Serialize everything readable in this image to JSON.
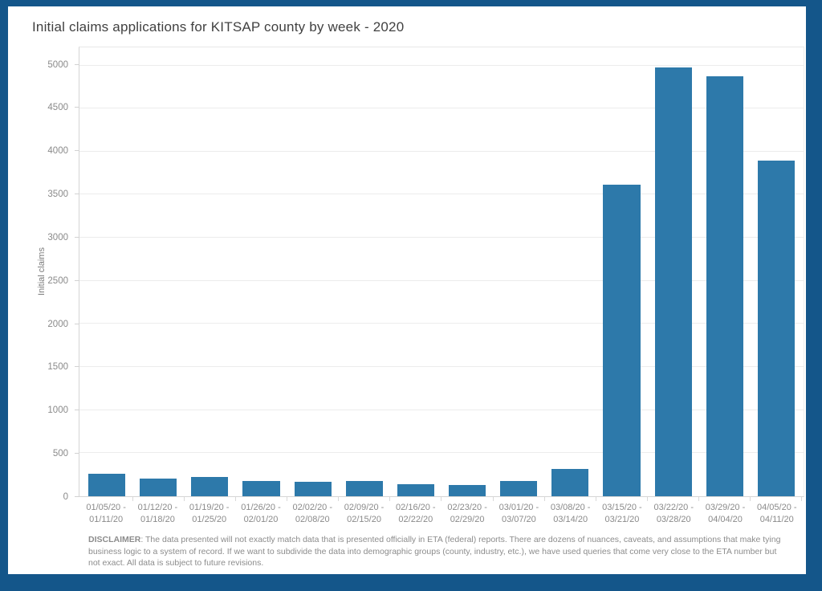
{
  "page": {
    "frame_color": "#14568a",
    "background_color": "#ffffff"
  },
  "chart_data": {
    "type": "bar",
    "title": "Initial claims applications for KITSAP county by week - 2020",
    "xlabel": "",
    "ylabel": "Initial claims",
    "ylim": [
      0,
      5210
    ],
    "yticks": [
      0,
      500,
      1000,
      1500,
      2000,
      2500,
      3000,
      3500,
      4000,
      4500,
      5000
    ],
    "grid": true,
    "legend_position": "none",
    "bar_color": "#2d79aa",
    "categories": [
      {
        "start": "01/05/20",
        "end": "01/11/20"
      },
      {
        "start": "01/12/20",
        "end": "01/18/20"
      },
      {
        "start": "01/19/20",
        "end": "01/25/20"
      },
      {
        "start": "01/26/20",
        "end": "02/01/20"
      },
      {
        "start": "02/02/20",
        "end": "02/08/20"
      },
      {
        "start": "02/09/20",
        "end": "02/15/20"
      },
      {
        "start": "02/16/20",
        "end": "02/22/20"
      },
      {
        "start": "02/23/20",
        "end": "02/29/20"
      },
      {
        "start": "03/01/20",
        "end": "03/07/20"
      },
      {
        "start": "03/08/20",
        "end": "03/14/20"
      },
      {
        "start": "03/15/20",
        "end": "03/21/20"
      },
      {
        "start": "03/22/20",
        "end": "03/28/20"
      },
      {
        "start": "03/29/20",
        "end": "04/04/20"
      },
      {
        "start": "04/05/20",
        "end": "04/11/20"
      }
    ],
    "values": [
      260,
      205,
      220,
      175,
      165,
      180,
      140,
      130,
      180,
      320,
      3620,
      4980,
      4870,
      3900
    ]
  },
  "footer": {
    "disclaimer_label": "DISCLAIMER",
    "disclaimer_text": ": The data presented will not exactly match data that is presented officially in ETA (federal) reports. There are dozens of nuances, caveats, and assumptions that make tying business logic to a system of record. If we want to subdivide the data into demographic groups (county, industry, etc.), we have used queries that come very close to the ETA number but not exact.  All data is subject to future revisions."
  }
}
